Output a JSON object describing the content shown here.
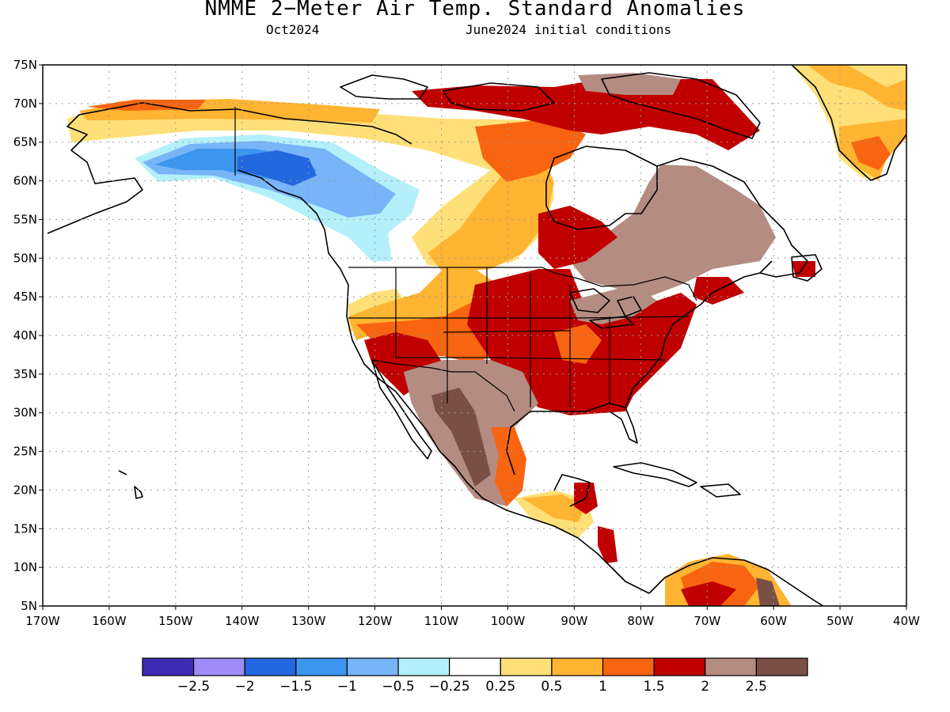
{
  "header": {
    "title": "NMME 2−Meter Air Temp. Standard Anomalies",
    "target_month": "Oct2024",
    "init": "June2024 initial conditions"
  },
  "axes": {
    "lat_labels": [
      "75N",
      "70N",
      "65N",
      "60N",
      "55N",
      "50N",
      "45N",
      "40N",
      "35N",
      "30N",
      "25N",
      "20N",
      "15N",
      "10N",
      "5N"
    ],
    "lon_labels": [
      "170W",
      "160W",
      "150W",
      "140W",
      "130W",
      "120W",
      "110W",
      "100W",
      "90W",
      "80W",
      "70W",
      "60W",
      "50W",
      "40W"
    ],
    "lat_range": [
      5,
      75
    ],
    "lon_range": [
      -170,
      -40
    ],
    "grid": "dotted"
  },
  "colorbar": {
    "colors": [
      "#3f2cb4",
      "#a08cf8",
      "#2468e0",
      "#3c96f0",
      "#78b4f8",
      "#b4f0fa",
      "#ffffff",
      "#ffe078",
      "#ffb432",
      "#f86410",
      "#c00000",
      "#b48c82",
      "#7a5046"
    ],
    "labels": [
      "−2.5",
      "−2",
      "−1.5",
      "−1",
      "−0.5",
      "−0.25",
      "0.25",
      "0.5",
      "1",
      "1.5",
      "2",
      "2.5"
    ]
  },
  "chart_data": {
    "type": "heatmap",
    "title": "NMME 2−Meter Air Temp. Standard Anomalies",
    "period": "Oct2024",
    "initialization": "June2024 initial conditions",
    "legend_levels": [
      -2.5,
      -2,
      -1.5,
      -1,
      -0.5,
      -0.25,
      0.25,
      0.5,
      1,
      1.5,
      2,
      2.5
    ],
    "regions": [
      {
        "lon": [
          -155,
          -120
        ],
        "lat": [
          56,
          65
        ],
        "anomaly": -1.25
      },
      {
        "lon": [
          -140,
          -125
        ],
        "lat": [
          58,
          63
        ],
        "anomaly": -1.75
      },
      {
        "lon": [
          -165,
          -115
        ],
        "lat": [
          67,
          71
        ],
        "anomaly": 0.75
      },
      {
        "lon": [
          -120,
          -95
        ],
        "lat": [
          50,
          62
        ],
        "anomaly": 0.6
      },
      {
        "lon": [
          -100,
          -70
        ],
        "lat": [
          30,
          47
        ],
        "anomaly": 1.75
      },
      {
        "lon": [
          -120,
          -105
        ],
        "lat": [
          32,
          40
        ],
        "anomaly": 1.6
      },
      {
        "lon": [
          -110,
          -95
        ],
        "lat": [
          20,
          33
        ],
        "anomaly": 2.25
      },
      {
        "lon": [
          -85,
          -55
        ],
        "lat": [
          45,
          62
        ],
        "anomaly": 2.25
      },
      {
        "lon": [
          -65,
          -40
        ],
        "lat": [
          60,
          75
        ],
        "anomaly": 0.75
      }
    ]
  }
}
